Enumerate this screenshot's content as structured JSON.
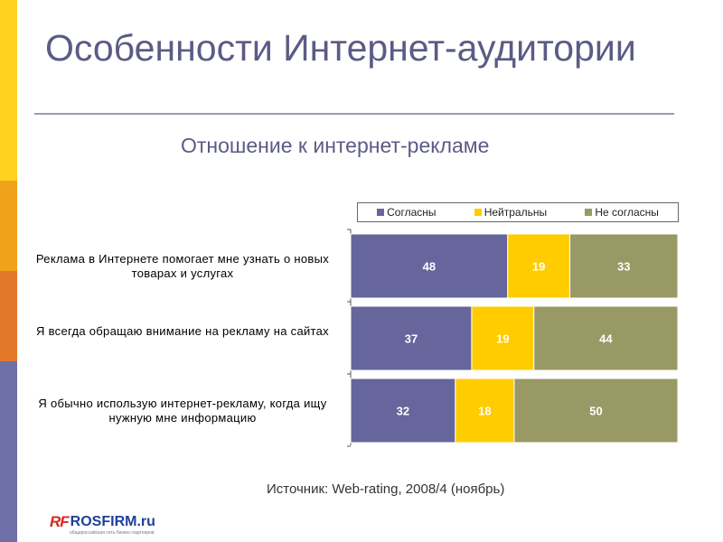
{
  "slide": {
    "title": "Особенности Интернет-аудитории",
    "subtitle": "Отношение к интернет-рекламе",
    "source": "Источник: Web-rating, 2008/4 (ноябрь)",
    "logo_rf": "RF",
    "logo_name": "ROSFIRM.ru",
    "logo_tagline": "общероссийская сеть бизнес-партнеров",
    "sidebar_colors": [
      "#ffd21f",
      "#f0a21a",
      "#e2782a",
      "#6f6fa8"
    ]
  },
  "chart_data": {
    "type": "bar",
    "orientation": "horizontal",
    "stacked": true,
    "categories": [
      "Реклама в Интернете помогает мне узнать о новых товарах и услугах",
      "Я всегда обращаю внимание на рекламу на сайтах",
      "Я обычно использую интернет-рекламу, когда ищу нужную мне информацию"
    ],
    "series": [
      {
        "name": "Согласны",
        "color": "#66669c",
        "values": [
          48,
          37,
          32
        ]
      },
      {
        "name": "Нейтральны",
        "color": "#ffcc00",
        "values": [
          19,
          19,
          18
        ]
      },
      {
        "name": "Не согласны",
        "color": "#999966",
        "values": [
          33,
          44,
          50
        ]
      }
    ],
    "xlim": [
      0,
      100
    ],
    "legend_position": "top",
    "grid": false
  }
}
